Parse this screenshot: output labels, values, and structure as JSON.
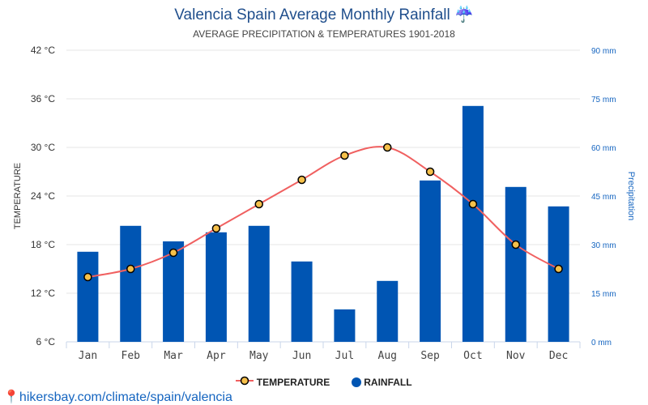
{
  "title": "Valencia Spain Average Monthly Rainfall",
  "title_icon": "umbrella-rain-icon",
  "subtitle": "AVERAGE PRECIPITATION & TEMPERATURES 1901-2018",
  "source": "hikersbay.com/climate/spain/valencia",
  "colors": {
    "bar": "#0055b3",
    "line": "#f06060",
    "marker": "#f6c04a",
    "title": "#1f4e8c"
  },
  "chart_data": {
    "type": "bar+line",
    "categories": [
      "Jan",
      "Feb",
      "Mar",
      "Apr",
      "May",
      "Jun",
      "Jul",
      "Aug",
      "Sep",
      "Oct",
      "Nov",
      "Dec"
    ],
    "series": [
      {
        "name": "TEMPERATURE",
        "type": "line",
        "axis": "left",
        "values": [
          14,
          15,
          17,
          20,
          23,
          26,
          29,
          30,
          27,
          23,
          18,
          15
        ]
      },
      {
        "name": "RAINFALL",
        "type": "bar",
        "axis": "right",
        "values": [
          27.8,
          35.8,
          31,
          33.8,
          35.8,
          24.8,
          10,
          18.8,
          49.8,
          72.8,
          47.8,
          41.8
        ]
      }
    ],
    "ylabel_left": "TEMPERATURE",
    "ylabel_right": "Precipitation",
    "ylim_left": [
      6,
      42
    ],
    "yticks_left": [
      "6 °C",
      "12 °C",
      "18 °C",
      "24 °C",
      "30 °C",
      "36 °C",
      "42 °C"
    ],
    "ylim_right": [
      0,
      90
    ],
    "yticks_right": [
      "0 mm",
      "15 mm",
      "30 mm",
      "45 mm",
      "60 mm",
      "75 mm",
      "90 mm"
    ],
    "grid": true,
    "legend": "bottom"
  }
}
